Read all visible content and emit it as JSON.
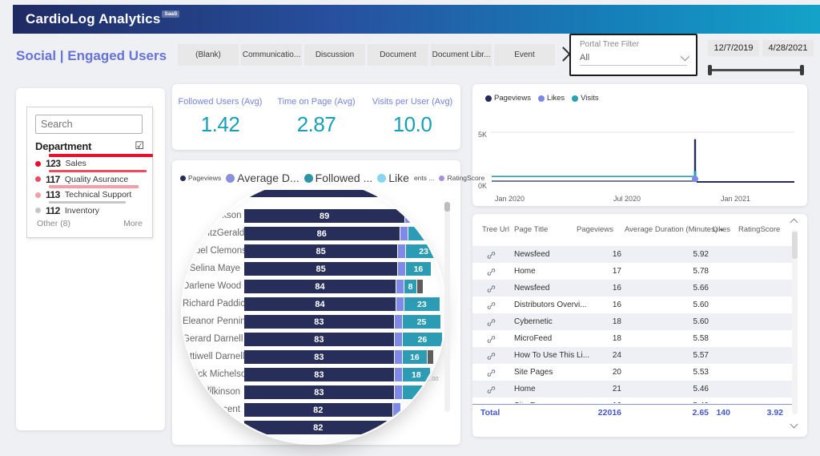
{
  "header": {
    "brand": "CardioLog Analytics",
    "badge": "SaaS"
  },
  "page_title": "Social | Engaged Users",
  "tabs": [
    "(Blank)",
    "Communicatio...",
    "Discussion",
    "Document",
    "Document Libr...",
    "Event"
  ],
  "portal_filter": {
    "label": "Portal Tree Filter",
    "value": "All"
  },
  "date_filter": {
    "start": "12/7/2019",
    "end": "4/28/2021"
  },
  "department": {
    "search_placeholder": "Search",
    "title": "Department",
    "items": [
      {
        "count": "123",
        "label": "Sales",
        "color": "#e8112d",
        "bar": 130
      },
      {
        "count": "117",
        "label": "Quality Asurance",
        "color": "#ee4c5c",
        "bar": 122
      },
      {
        "count": "113",
        "label": "Technical Support",
        "color": "#f29fa7",
        "bar": 112
      },
      {
        "count": "112",
        "label": "Inventory",
        "color": "#c6c6c6",
        "bar": 96
      }
    ],
    "other": "Other (8)",
    "more": "More"
  },
  "kpis": [
    {
      "label": "Followed Users (Avg)",
      "value": "1.42"
    },
    {
      "label": "Time on Page (Avg)",
      "value": "2.87"
    },
    {
      "label": "Visits per User (Avg)",
      "value": "10.0"
    }
  ],
  "bar_chart": {
    "legend": [
      {
        "label": "Pageviews",
        "color": "#232c5d",
        "size": "s"
      },
      {
        "label": "Average D...",
        "color": "#8a90dd",
        "size": "l"
      },
      {
        "label": "Followed ...",
        "color": "#2f93a8",
        "size": "l"
      },
      {
        "label": "Like",
        "color": "#85d6ee",
        "size": "l"
      },
      {
        "label": "ents ...",
        "color": "",
        "size": "s"
      },
      {
        "label": "RatingScore",
        "color": "#a98ee0",
        "size": "s"
      }
    ],
    "rows": [
      {
        "name": "June Clarkson",
        "value": 89,
        "teal": 24,
        "teal_label": "",
        "gray": false
      },
      {
        "name": "Liza FitzGerald",
        "value": 86,
        "teal": 23,
        "teal_label": "23",
        "gray": false
      },
      {
        "name": "Mabel Clemons",
        "value": 85,
        "teal": 23,
        "teal_label": "23",
        "gray": false
      },
      {
        "name": "Selina Maye",
        "value": 85,
        "teal": 16,
        "teal_label": "16",
        "gray": false
      },
      {
        "name": "Darlene Wood",
        "value": 84,
        "teal": 8,
        "teal_label": "8",
        "gray": true
      },
      {
        "name": "Richard Paddick",
        "value": 84,
        "teal": 23,
        "teal_label": "23",
        "gray": false
      },
      {
        "name": "Eleanor Pennington",
        "value": 83,
        "teal": 25,
        "teal_label": "25",
        "gray": false
      },
      {
        "name": "Gerard Darnell",
        "value": 83,
        "teal": 26,
        "teal_label": "26",
        "gray": false
      },
      {
        "name": "Ottiwell Darnell",
        "value": 83,
        "teal": 16,
        "teal_label": "16",
        "gray": true
      },
      {
        "name": "derick Michelson",
        "value": 83,
        "teal": 18,
        "teal_label": "18",
        "gray": false
      },
      {
        "name": "ron Wilkinson",
        "value": 83,
        "teal": 14,
        "teal_label": "",
        "gray": false
      },
      {
        "name": "Vincent",
        "value": 82,
        "teal": 0,
        "teal_label": "",
        "gray": false
      },
      {
        "name": "",
        "value": 82,
        "teal": 0,
        "teal_label": "",
        "gray": false
      }
    ],
    "remnants": {
      "left": "Ha",
      "axis": "...00"
    }
  },
  "line_chart": {
    "legend": [
      {
        "label": "Pageviews",
        "color": "#232c5d"
      },
      {
        "label": "Likes",
        "color": "#7d87e6"
      },
      {
        "label": "Visits",
        "color": "#28a0b6"
      }
    ],
    "y_ticks": [
      "5K",
      "0K"
    ],
    "x_ticks": [
      "Jan 2020",
      "Jul 2020",
      "Jan 2021"
    ],
    "y_max": 5000,
    "baseline_max": 250,
    "spike": {
      "pageviews": 4300,
      "visits": 1100,
      "likes": 300
    }
  },
  "table": {
    "columns": [
      "Tree Url",
      "Page Title",
      "Pageviews",
      "Average Duration (Minutes)",
      "Likes",
      "RatingScore"
    ],
    "sort_arrow": "▼",
    "rows": [
      {
        "page_title": "Newsfeed",
        "pageviews": "16",
        "avg_duration": "5.92"
      },
      {
        "page_title": "Home",
        "pageviews": "17",
        "avg_duration": "5.78"
      },
      {
        "page_title": "Newsfeed",
        "pageviews": "16",
        "avg_duration": "5.66"
      },
      {
        "page_title": "Distributors Overvi...",
        "pageviews": "16",
        "avg_duration": "5.60"
      },
      {
        "page_title": "Cybernetic",
        "pageviews": "18",
        "avg_duration": "5.60"
      },
      {
        "page_title": "MicroFeed",
        "pageviews": "18",
        "avg_duration": "5.58"
      },
      {
        "page_title": "How To Use This Li...",
        "pageviews": "24",
        "avg_duration": "5.57"
      },
      {
        "page_title": "Site Pages",
        "pageviews": "20",
        "avg_duration": "5.53"
      },
      {
        "page_title": "Home",
        "pageviews": "21",
        "avg_duration": "5.46"
      }
    ],
    "partial_row": {
      "page_title": "Site P...",
      "pageviews": "16",
      "avg_duration": "5.40"
    },
    "total": {
      "label": "Total",
      "pageviews": "22016",
      "avg_duration": "2.65",
      "likes": "140",
      "rating": "3.92"
    }
  }
}
